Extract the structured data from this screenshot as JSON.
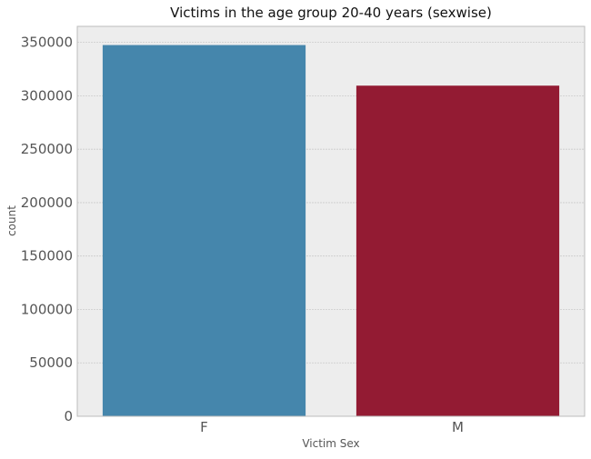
{
  "chart_data": {
    "type": "bar",
    "title": "Victims in the age group 20-40 years (sexwise)",
    "xlabel": "Victim Sex",
    "ylabel": "count",
    "categories": [
      "F",
      "M"
    ],
    "values": [
      347500,
      309500
    ],
    "bar_colors": [
      "#4586ac",
      "#931b33"
    ],
    "ylim": [
      0,
      365000
    ],
    "yticks": [
      0,
      50000,
      100000,
      150000,
      200000,
      250000,
      300000,
      350000
    ],
    "ytick_labels": [
      "0",
      "50000",
      "100000",
      "150000",
      "200000",
      "250000",
      "300000",
      "350000"
    ],
    "grid": true,
    "legend": "none"
  },
  "style": {
    "plot_background": "#ededed",
    "grid_color": "#cbcbcb",
    "frame_color": "#bcbcbc"
  }
}
